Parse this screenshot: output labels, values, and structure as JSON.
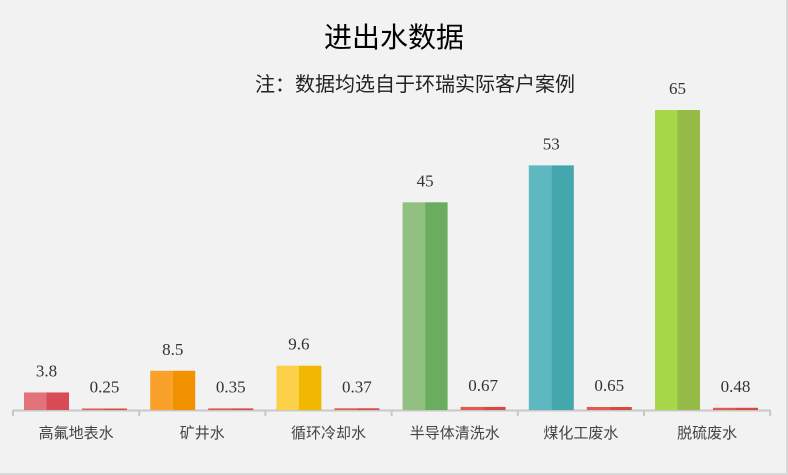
{
  "chart_data": {
    "type": "bar",
    "title": "进出水数据",
    "subtitle": "注：数据均选自于环瑞实际客户案例",
    "categories": [
      "高氟地表水",
      "矿井水",
      "循环冷却水",
      "半导体清洗水",
      "煤化工废水",
      "脱硫废水"
    ],
    "series": [
      {
        "values": [
          3.8,
          8.5,
          9.6,
          45,
          53,
          65
        ],
        "labels": [
          "3.8",
          "8.5",
          "9.6",
          "45",
          "53",
          "65"
        ]
      },
      {
        "values": [
          0.25,
          0.35,
          0.37,
          0.67,
          0.65,
          0.48
        ],
        "labels": [
          "0.25",
          "0.35",
          "0.37",
          "0.67",
          "0.65",
          "0.48"
        ]
      }
    ],
    "colors": [
      [
        "#e2737b",
        "#d94c57"
      ],
      [
        "#f9a12a",
        "#f39200"
      ],
      [
        "#fdd04a",
        "#f2b700"
      ],
      [
        "#91c081",
        "#6aad5e"
      ],
      [
        "#5db8c0",
        "#45a7ae"
      ],
      [
        "#a6d84a",
        "#97bb46"
      ]
    ],
    "second_color": [
      "#e05a50",
      "#d84a40"
    ],
    "ylim": [
      0,
      65
    ],
    "grid": false,
    "legend": "none"
  }
}
